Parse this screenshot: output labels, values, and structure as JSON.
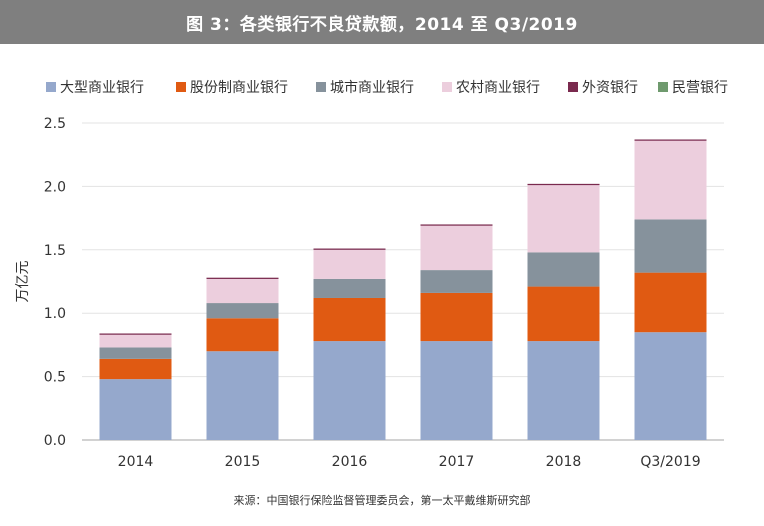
{
  "header": {
    "title": "图 3：各类银行不良贷款额，2014 至 Q3/2019"
  },
  "footer": {
    "source": "来源：中国银行保险监督管理委员会，第一太平戴维斯研究部"
  },
  "chart_data": {
    "type": "bar",
    "stacked": true,
    "categories": [
      "2014",
      "2015",
      "2016",
      "2017",
      "2018",
      "Q3/2019"
    ],
    "ylabel": "万亿元",
    "ylim": [
      0,
      2.5
    ],
    "yticks": [
      "0.0",
      "0.5",
      "1.0",
      "1.5",
      "2.0",
      "2.5"
    ],
    "grid": true,
    "legend_position": "top",
    "series": [
      {
        "name": "大型商业银行",
        "color": "#95a8cc",
        "values": [
          0.48,
          0.7,
          0.78,
          0.78,
          0.78,
          0.85
        ]
      },
      {
        "name": "股份制商业银行",
        "color": "#e05a12",
        "values": [
          0.16,
          0.26,
          0.34,
          0.38,
          0.43,
          0.47
        ]
      },
      {
        "name": "城市商业银行",
        "color": "#86929c",
        "values": [
          0.09,
          0.12,
          0.15,
          0.18,
          0.27,
          0.42
        ]
      },
      {
        "name": "农村商业银行",
        "color": "#eccedd",
        "values": [
          0.1,
          0.19,
          0.23,
          0.35,
          0.53,
          0.62
        ]
      },
      {
        "name": "外资银行",
        "color": "#7a2a4e",
        "values": [
          0.01,
          0.01,
          0.01,
          0.01,
          0.01,
          0.01
        ]
      },
      {
        "name": "民营银行",
        "color": "#6f9a6e",
        "values": [
          0.0,
          0.0,
          0.0,
          0.0,
          0.0,
          0.0
        ]
      }
    ]
  }
}
